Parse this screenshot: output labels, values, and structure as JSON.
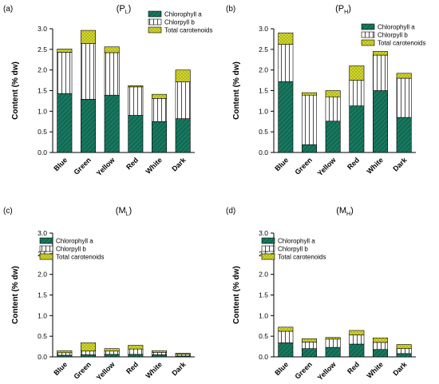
{
  "colors": {
    "chlorophyll_a": "#0f6b54",
    "chlorophyll_b": "#ffffff",
    "carotenoids": "#d7dc2e",
    "stroke": "#000000"
  },
  "chart_data": [
    {
      "type": "bar",
      "stacked": true,
      "panel_label": "(a)",
      "title_main": "(P",
      "title_sub": "L",
      "title_close": ")",
      "ylabel": "Content (% dw)",
      "ylim": [
        0,
        3.0
      ],
      "yticks": [
        "0.0",
        "0.5",
        "1.0",
        "1.5",
        "2.0",
        "2.5",
        "3.0"
      ],
      "categories": [
        "Blue",
        "Green",
        "Yellow",
        "Red",
        "White",
        "Dark"
      ],
      "legend_position": "top-right",
      "series": [
        {
          "name": "Chlorophyll a",
          "values": [
            1.43,
            1.29,
            1.39,
            0.9,
            0.75,
            0.82
          ]
        },
        {
          "name": "Chlorpyll b",
          "values": [
            1.0,
            1.35,
            1.03,
            0.69,
            0.56,
            0.89
          ]
        },
        {
          "name": "Total carotenoids",
          "values": [
            0.08,
            0.32,
            0.14,
            0.03,
            0.1,
            0.29
          ]
        }
      ]
    },
    {
      "type": "bar",
      "stacked": true,
      "panel_label": "(b)",
      "title_main": "(P",
      "title_sub": "H",
      "title_close": ")",
      "ylabel": "Content (% dw)",
      "ylim": [
        0,
        3.0
      ],
      "yticks": [
        "0.0",
        "0.5",
        "1.0",
        "1.5",
        "2.0",
        "2.5",
        "3.0"
      ],
      "categories": [
        "Blue",
        "Green",
        "Yellow",
        "Red",
        "White",
        "Dark"
      ],
      "legend_position": "top-right",
      "series": [
        {
          "name": "Chlorophyll a",
          "values": [
            1.72,
            0.19,
            0.76,
            1.13,
            1.5,
            0.85
          ]
        },
        {
          "name": "Chlorpyll b",
          "values": [
            0.9,
            1.2,
            0.59,
            0.62,
            0.86,
            0.95
          ]
        },
        {
          "name": "Total carotenoids",
          "values": [
            0.28,
            0.06,
            0.15,
            0.35,
            0.09,
            0.12
          ]
        }
      ]
    },
    {
      "type": "bar",
      "stacked": true,
      "panel_label": "(c)",
      "title_main": "(M",
      "title_sub": "L",
      "title_close": ")",
      "ylabel": "Content (% dw)",
      "ylim": [
        0,
        3.0
      ],
      "yticks": [
        "0.0",
        "0.5",
        "1.0",
        "1.5",
        "2.0",
        "2.5",
        "3.0"
      ],
      "categories": [
        "Blue",
        "Green",
        "Yellow",
        "Red",
        "White",
        "Dark"
      ],
      "legend_position": "top-left",
      "series": [
        {
          "name": "Chlorophyll a",
          "values": [
            0.04,
            0.05,
            0.06,
            0.06,
            0.05,
            0.02
          ]
        },
        {
          "name": "Chlorpyll b",
          "values": [
            0.06,
            0.09,
            0.08,
            0.13,
            0.06,
            0.04
          ]
        },
        {
          "name": "Total carotenoids",
          "values": [
            0.05,
            0.2,
            0.06,
            0.09,
            0.04,
            0.03
          ]
        }
      ]
    },
    {
      "type": "bar",
      "stacked": true,
      "panel_label": "(d)",
      "title_main": "(M",
      "title_sub": "H",
      "title_close": ")",
      "ylabel": "Content (% dw)",
      "ylim": [
        0,
        3.0
      ],
      "yticks": [
        "0.0",
        "0.5",
        "1.0",
        "1.5",
        "2.0",
        "2.5",
        "3.0"
      ],
      "categories": [
        "Blue",
        "Green",
        "Yellow",
        "Red",
        "White",
        "Dark"
      ],
      "legend_position": "top-left",
      "series": [
        {
          "name": "Chlorophyll a",
          "values": [
            0.34,
            0.2,
            0.23,
            0.31,
            0.18,
            0.08
          ]
        },
        {
          "name": "Chlorpyll b",
          "values": [
            0.28,
            0.16,
            0.2,
            0.22,
            0.17,
            0.12
          ]
        },
        {
          "name": "Total carotenoids",
          "values": [
            0.1,
            0.08,
            0.04,
            0.11,
            0.11,
            0.1
          ]
        }
      ]
    }
  ]
}
